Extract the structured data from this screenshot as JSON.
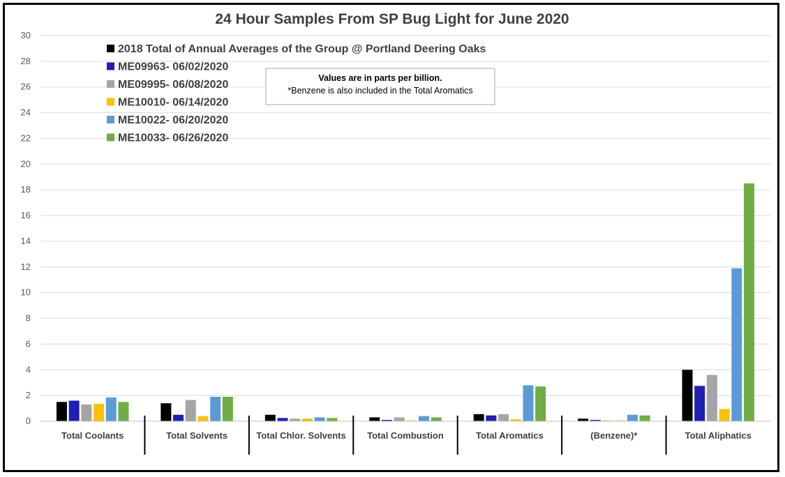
{
  "chart_data": {
    "type": "bar",
    "title": "24 Hour Samples From SP Bug Light for June 2020",
    "xlabel": "",
    "ylabel": "",
    "ylim": [
      0,
      30
    ],
    "yticks": [
      "0",
      "2",
      "4",
      "6",
      "8",
      "10",
      "12",
      "14",
      "16",
      "18",
      "20",
      "22",
      "24",
      "26",
      "28",
      "30"
    ],
    "grid": true,
    "legend_position": "top-left",
    "categories": [
      "Total Coolants",
      "Total Solvents",
      "Total Chlor. Solvents",
      "Total Combustion",
      "Total Aromatics",
      "(Benzene)*",
      "Total Aliphatics"
    ],
    "series": [
      {
        "name": "2018 Total of Annual Averages of the Group @ Portland Deering Oaks",
        "color": "#000000",
        "values": [
          1.5,
          1.4,
          0.5,
          0.3,
          0.55,
          0.2,
          4.0
        ]
      },
      {
        "name": "ME09963- 06/02/2020",
        "color": "#1F1FB4",
        "values": [
          1.6,
          0.5,
          0.25,
          0.1,
          0.45,
          0.1,
          2.75
        ]
      },
      {
        "name": "ME09995- 06/08/2020",
        "color": "#A5A5A5",
        "values": [
          1.3,
          1.65,
          0.2,
          0.3,
          0.55,
          0.05,
          3.6
        ]
      },
      {
        "name": "ME10010- 06/14/2020",
        "color": "#FFC000",
        "values": [
          1.35,
          0.4,
          0.2,
          0.05,
          0.15,
          0.05,
          0.95
        ]
      },
      {
        "name": "ME10022- 06/20/2020",
        "color": "#5B9BD5",
        "values": [
          1.85,
          1.9,
          0.3,
          0.4,
          2.8,
          0.5,
          11.9
        ]
      },
      {
        "name": "ME10033- 06/26/2020",
        "color": "#70AD47",
        "values": [
          1.5,
          1.9,
          0.25,
          0.3,
          2.7,
          0.45,
          18.5
        ]
      }
    ],
    "annotation": {
      "line1": "Values are in parts per billion.",
      "line2": "*Benzene is also included in the Total Aromatics"
    }
  }
}
